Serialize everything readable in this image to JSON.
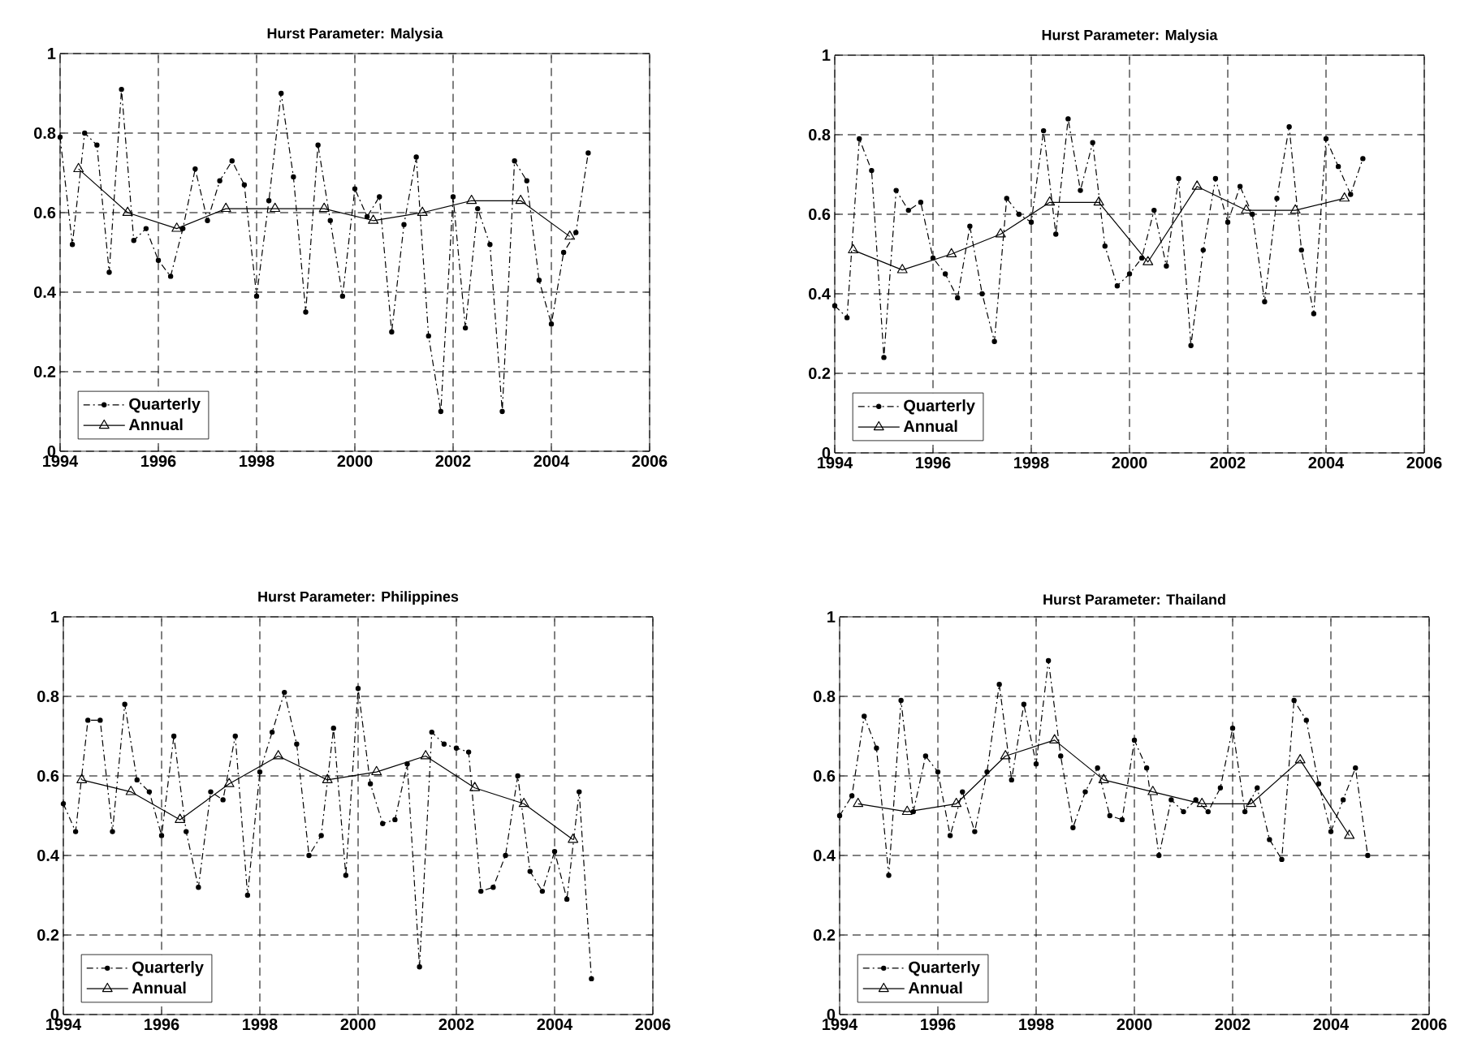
{
  "chart_data": [
    {
      "type": "line",
      "title": "Hurst Parameter: Malysia",
      "xlim": [
        1994,
        2006
      ],
      "ylim": [
        0,
        1
      ],
      "xticks": [
        1994,
        1996,
        1998,
        2000,
        2002,
        2004,
        2006
      ],
      "yticks": [
        0,
        0.2,
        0.4,
        0.6,
        0.8,
        1
      ],
      "grid": true,
      "legend": "bottom left",
      "series": [
        {
          "name": "Quarterly",
          "color": "#000000",
          "marker": "circle",
          "line_style": "dashed",
          "x": [
            1994,
            1994.25,
            1994.5,
            1994.75,
            1995,
            1995.25,
            1995.5,
            1995.75,
            1996,
            1996.25,
            1996.5,
            1996.75,
            1997,
            1997.25,
            1997.5,
            1997.75,
            1998,
            1998.25,
            1998.5,
            1998.75,
            1999,
            1999.25,
            1999.5,
            1999.75,
            2000,
            2000.25,
            2000.5,
            2000.75,
            2001,
            2001.25,
            2001.5,
            2001.75,
            2002,
            2002.25,
            2002.5,
            2002.75,
            2003,
            2003.25,
            2003.5,
            2003.75,
            2004,
            2004.25,
            2004.5,
            2004.75
          ],
          "values": [
            0.79,
            0.52,
            0.8,
            0.77,
            0.45,
            0.91,
            0.53,
            0.56,
            0.48,
            0.44,
            0.56,
            0.71,
            0.58,
            0.68,
            0.73,
            0.67,
            0.39,
            0.63,
            0.9,
            0.69,
            0.35,
            0.77,
            0.58,
            0.39,
            0.66,
            0.59,
            0.64,
            0.3,
            0.57,
            0.74,
            0.29,
            0.1,
            0.64,
            0.31,
            0.61,
            0.52,
            0.1,
            0.73,
            0.68,
            0.43,
            0.32,
            0.5,
            0.55,
            0.75
          ]
        },
        {
          "name": "Annual",
          "color": "#000000",
          "marker": "triangle",
          "line_style": "solid",
          "x": [
            1994.375,
            1995.375,
            1996.375,
            1997.375,
            1998.375,
            1999.375,
            2000.375,
            2001.375,
            2002.375,
            2003.375,
            2004.375
          ],
          "values": [
            0.71,
            0.6,
            0.56,
            0.61,
            0.61,
            0.61,
            0.58,
            0.6,
            0.63,
            0.63,
            0.54
          ]
        }
      ]
    },
    {
      "type": "line",
      "title": "Hurst Parameter: Malysia",
      "xlim": [
        1994,
        2006
      ],
      "ylim": [
        0,
        1
      ],
      "xticks": [
        1994,
        1996,
        1998,
        2000,
        2002,
        2004,
        2006
      ],
      "yticks": [
        0,
        0.2,
        0.4,
        0.6,
        0.8,
        1
      ],
      "grid": true,
      "legend": "bottom left",
      "series": [
        {
          "name": "Quarterly",
          "color": "#000000",
          "marker": "circle",
          "line_style": "dashed",
          "x": [
            1994,
            1994.25,
            1994.5,
            1994.75,
            1995,
            1995.25,
            1995.5,
            1995.75,
            1996,
            1996.25,
            1996.5,
            1996.75,
            1997,
            1997.25,
            1997.5,
            1997.75,
            1998,
            1998.25,
            1998.5,
            1998.75,
            1999,
            1999.25,
            1999.5,
            1999.75,
            2000,
            2000.25,
            2000.5,
            2000.75,
            2001,
            2001.25,
            2001.5,
            2001.75,
            2002,
            2002.25,
            2002.5,
            2002.75,
            2003,
            2003.25,
            2003.5,
            2003.75,
            2004,
            2004.25,
            2004.5,
            2004.75
          ],
          "values": [
            0.37,
            0.34,
            0.79,
            0.71,
            0.24,
            0.66,
            0.61,
            0.63,
            0.49,
            0.45,
            0.39,
            0.57,
            0.4,
            0.28,
            0.64,
            0.6,
            0.58,
            0.81,
            0.55,
            0.84,
            0.66,
            0.78,
            0.52,
            0.42,
            0.45,
            0.49,
            0.61,
            0.47,
            0.69,
            0.27,
            0.51,
            0.69,
            0.58,
            0.67,
            0.6,
            0.38,
            0.64,
            0.82,
            0.51,
            0.35,
            0.79,
            0.72,
            0.65,
            0.74
          ]
        },
        {
          "name": "Annual",
          "color": "#000000",
          "marker": "triangle",
          "line_style": "solid",
          "x": [
            1994.375,
            1995.375,
            1996.375,
            1997.375,
            1998.375,
            1999.375,
            2000.375,
            2001.375,
            2002.375,
            2003.375,
            2004.375
          ],
          "values": [
            0.51,
            0.46,
            0.5,
            0.55,
            0.63,
            0.63,
            0.48,
            0.67,
            0.61,
            0.61,
            0.64
          ]
        }
      ]
    },
    {
      "type": "line",
      "title": "Hurst Parameter: Philippines",
      "xlim": [
        1994,
        2006
      ],
      "ylim": [
        0,
        1
      ],
      "xticks": [
        1994,
        1996,
        1998,
        2000,
        2002,
        2004,
        2006
      ],
      "yticks": [
        0,
        0.2,
        0.4,
        0.6,
        0.8,
        1
      ],
      "grid": true,
      "legend": "bottom left",
      "series": [
        {
          "name": "Quarterly",
          "color": "#000000",
          "marker": "circle",
          "line_style": "dashed",
          "x": [
            1994,
            1994.25,
            1994.5,
            1994.75,
            1995,
            1995.25,
            1995.5,
            1995.75,
            1996,
            1996.25,
            1996.5,
            1996.75,
            1997,
            1997.25,
            1997.5,
            1997.75,
            1998,
            1998.25,
            1998.5,
            1998.75,
            1999,
            1999.25,
            1999.5,
            1999.75,
            2000,
            2000.25,
            2000.5,
            2000.75,
            2001,
            2001.25,
            2001.5,
            2001.75,
            2002,
            2002.25,
            2002.5,
            2002.75,
            2003,
            2003.25,
            2003.5,
            2003.75,
            2004,
            2004.25,
            2004.5,
            2004.75
          ],
          "values": [
            0.53,
            0.46,
            0.74,
            0.74,
            0.46,
            0.78,
            0.59,
            0.56,
            0.45,
            0.7,
            0.46,
            0.32,
            0.56,
            0.54,
            0.7,
            0.3,
            0.61,
            0.71,
            0.81,
            0.68,
            0.4,
            0.45,
            0.72,
            0.35,
            0.82,
            0.58,
            0.48,
            0.49,
            0.63,
            0.12,
            0.71,
            0.68,
            0.67,
            0.66,
            0.31,
            0.32,
            0.4,
            0.6,
            0.36,
            0.31,
            0.41,
            0.29,
            0.56,
            0.09
          ]
        },
        {
          "name": "Annual",
          "color": "#000000",
          "marker": "triangle",
          "line_style": "solid",
          "x": [
            1994.375,
            1995.375,
            1996.375,
            1997.375,
            1998.375,
            1999.375,
            2000.375,
            2001.375,
            2002.375,
            2003.375,
            2004.375
          ],
          "values": [
            0.59,
            0.56,
            0.49,
            0.58,
            0.65,
            0.59,
            0.61,
            0.65,
            0.57,
            0.53,
            0.44
          ]
        }
      ]
    },
    {
      "type": "line",
      "title": "Hurst Parameter: Thailand",
      "xlim": [
        1994,
        2006
      ],
      "ylim": [
        0,
        1
      ],
      "xticks": [
        1994,
        1996,
        1998,
        2000,
        2002,
        2004,
        2006
      ],
      "yticks": [
        0,
        0.2,
        0.4,
        0.6,
        0.8,
        1
      ],
      "grid": true,
      "legend": "bottom left",
      "series": [
        {
          "name": "Quarterly",
          "color": "#000000",
          "marker": "circle",
          "line_style": "dashed",
          "x": [
            1994,
            1994.25,
            1994.5,
            1994.75,
            1995,
            1995.25,
            1995.5,
            1995.75,
            1996,
            1996.25,
            1996.5,
            1996.75,
            1997,
            1997.25,
            1997.5,
            1997.75,
            1998,
            1998.25,
            1998.5,
            1998.75,
            1999,
            1999.25,
            1999.5,
            1999.75,
            2000,
            2000.25,
            2000.5,
            2000.75,
            2001,
            2001.25,
            2001.5,
            2001.75,
            2002,
            2002.25,
            2002.5,
            2002.75,
            2003,
            2003.25,
            2003.5,
            2003.75,
            2004,
            2004.25,
            2004.5,
            2004.75
          ],
          "values": [
            0.5,
            0.55,
            0.75,
            0.67,
            0.35,
            0.79,
            0.51,
            0.65,
            0.61,
            0.45,
            0.56,
            0.46,
            0.61,
            0.83,
            0.59,
            0.78,
            0.63,
            0.89,
            0.65,
            0.47,
            0.56,
            0.62,
            0.5,
            0.49,
            0.69,
            0.62,
            0.4,
            0.54,
            0.51,
            0.54,
            0.51,
            0.57,
            0.72,
            0.51,
            0.57,
            0.44,
            0.39,
            0.79,
            0.74,
            0.58,
            0.46,
            0.54,
            0.62,
            0.4
          ]
        },
        {
          "name": "Annual",
          "color": "#000000",
          "marker": "triangle",
          "line_style": "solid",
          "x": [
            1994.375,
            1995.375,
            1996.375,
            1997.375,
            1998.375,
            1999.375,
            2000.375,
            2001.375,
            2002.375,
            2003.375,
            2004.375
          ],
          "values": [
            0.53,
            0.51,
            0.53,
            0.65,
            0.69,
            0.59,
            0.56,
            0.53,
            0.53,
            0.64,
            0.45
          ]
        }
      ]
    }
  ]
}
